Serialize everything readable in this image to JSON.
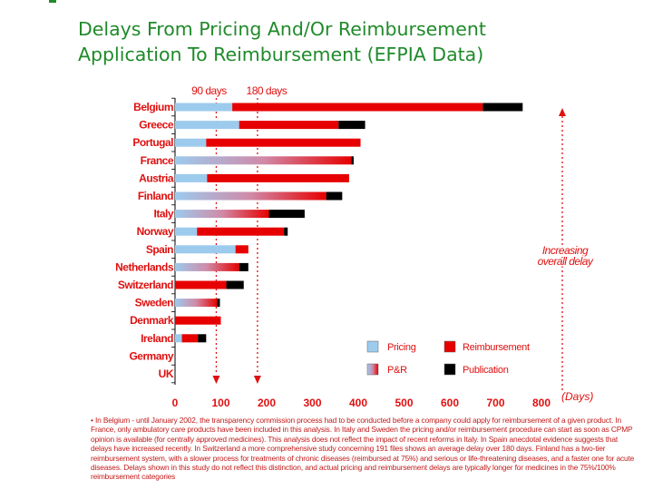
{
  "title": {
    "line1": "Delays From Pricing And/Or Reimbursement",
    "line2": "Application To Reimbursement (EFPIA Data)"
  },
  "chart_data": {
    "type": "bar",
    "orientation": "horizontal",
    "stacked": true,
    "categories": [
      "Belgium",
      "Greece",
      "Portugal",
      "France",
      "Austria",
      "Finland",
      "Italy",
      "Norway",
      "Spain",
      "Netherlands",
      "Switzerland",
      "Sweden",
      "Denmark",
      "Ireland",
      "Germany",
      "UK"
    ],
    "series": [
      {
        "name": "Pricing",
        "kind": "pricing",
        "color": "#9ccbee",
        "values": [
          125,
          140,
          68,
          0,
          70,
          0,
          0,
          48,
          132,
          0,
          0,
          0,
          0,
          15,
          0,
          0
        ]
      },
      {
        "name": "P&R",
        "kind": "pr",
        "color": "#e60000",
        "values": [
          0,
          0,
          0,
          385,
          0,
          330,
          205,
          0,
          0,
          140,
          0,
          92,
          0,
          0,
          0,
          0
        ]
      },
      {
        "name": "Reimbursement",
        "kind": "reimb",
        "color": "#e60000",
        "values": [
          547,
          217,
          337,
          0,
          310,
          0,
          0,
          190,
          28,
          0,
          112,
          0,
          100,
          35,
          0,
          0
        ]
      },
      {
        "name": "Publication",
        "kind": "pub",
        "color": "#000000",
        "values": [
          87,
          58,
          0,
          5,
          0,
          35,
          78,
          8,
          0,
          20,
          38,
          6,
          0,
          18,
          0,
          0
        ]
      }
    ],
    "xlim": [
      0,
      800
    ],
    "xticks": [
      0,
      100,
      200,
      300,
      400,
      500,
      600,
      700,
      800
    ],
    "xlabel": "(Days)",
    "reference_lines": [
      {
        "label": "90 days",
        "value": 90
      },
      {
        "label": "180 days",
        "value": 180
      }
    ],
    "annotation": "Increasing overall delay",
    "legend": {
      "position": "bottom-right",
      "items": [
        {
          "label": "Pricing",
          "kind": "pricing"
        },
        {
          "label": "Reimbursement",
          "kind": "reimb"
        },
        {
          "label": "P&R",
          "kind": "pr"
        },
        {
          "label": "Publication",
          "kind": "pub"
        }
      ]
    }
  },
  "footnote": "• In Belgium - until January 2002, the transparency commission process had to be conducted before a company could apply for reimbursement of a given product. In France, only ambulatory care products have been included in this analysis. In Italy and Sweden the pricing and/or reimbursement procedure can start as soon as CPMP opinion is available (for centrally approved medicines). This analysis does not reflect the impact of recent reforms in Italy. In Spain anecdotal evidence suggests that delays have increased recently. In Switzerland a more comprehensive study concerning 191 files shows an average delay over 180 days. Finland has a two-tier reimbursement system, with a slower process for treatments of chronic diseases (reimbursed at 75%) and serious or life-threatening diseases, and a faster one for acute diseases. Delays shown in this study do not reflect this distinction, and actual pricing and reimbursement delays are typically longer for medicines in the 75%/100% reimbursement categories"
}
